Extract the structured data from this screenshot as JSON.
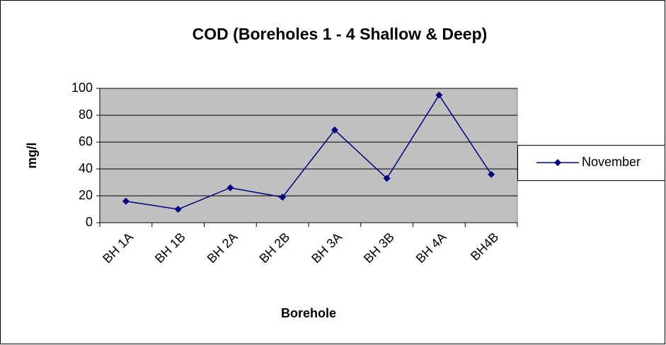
{
  "chart_data": {
    "type": "line",
    "title": "COD (Boreholes 1 - 4 Shallow & Deep)",
    "x_label": "Borehole",
    "y_label": "mg/l",
    "categories": [
      "BH 1A",
      "BH 1B",
      "BH 2A",
      "BH 2B",
      "BH 3A",
      "BH 3B",
      "BH 4A",
      "BH4B"
    ],
    "series": [
      {
        "name": "November",
        "color": "#000080",
        "values": [
          16,
          10,
          26,
          19,
          69,
          33,
          95,
          36
        ]
      }
    ],
    "ylim": [
      0,
      100
    ],
    "yticks": [
      0,
      20,
      40,
      60,
      80,
      100
    ],
    "grid": true,
    "legend": "right"
  }
}
